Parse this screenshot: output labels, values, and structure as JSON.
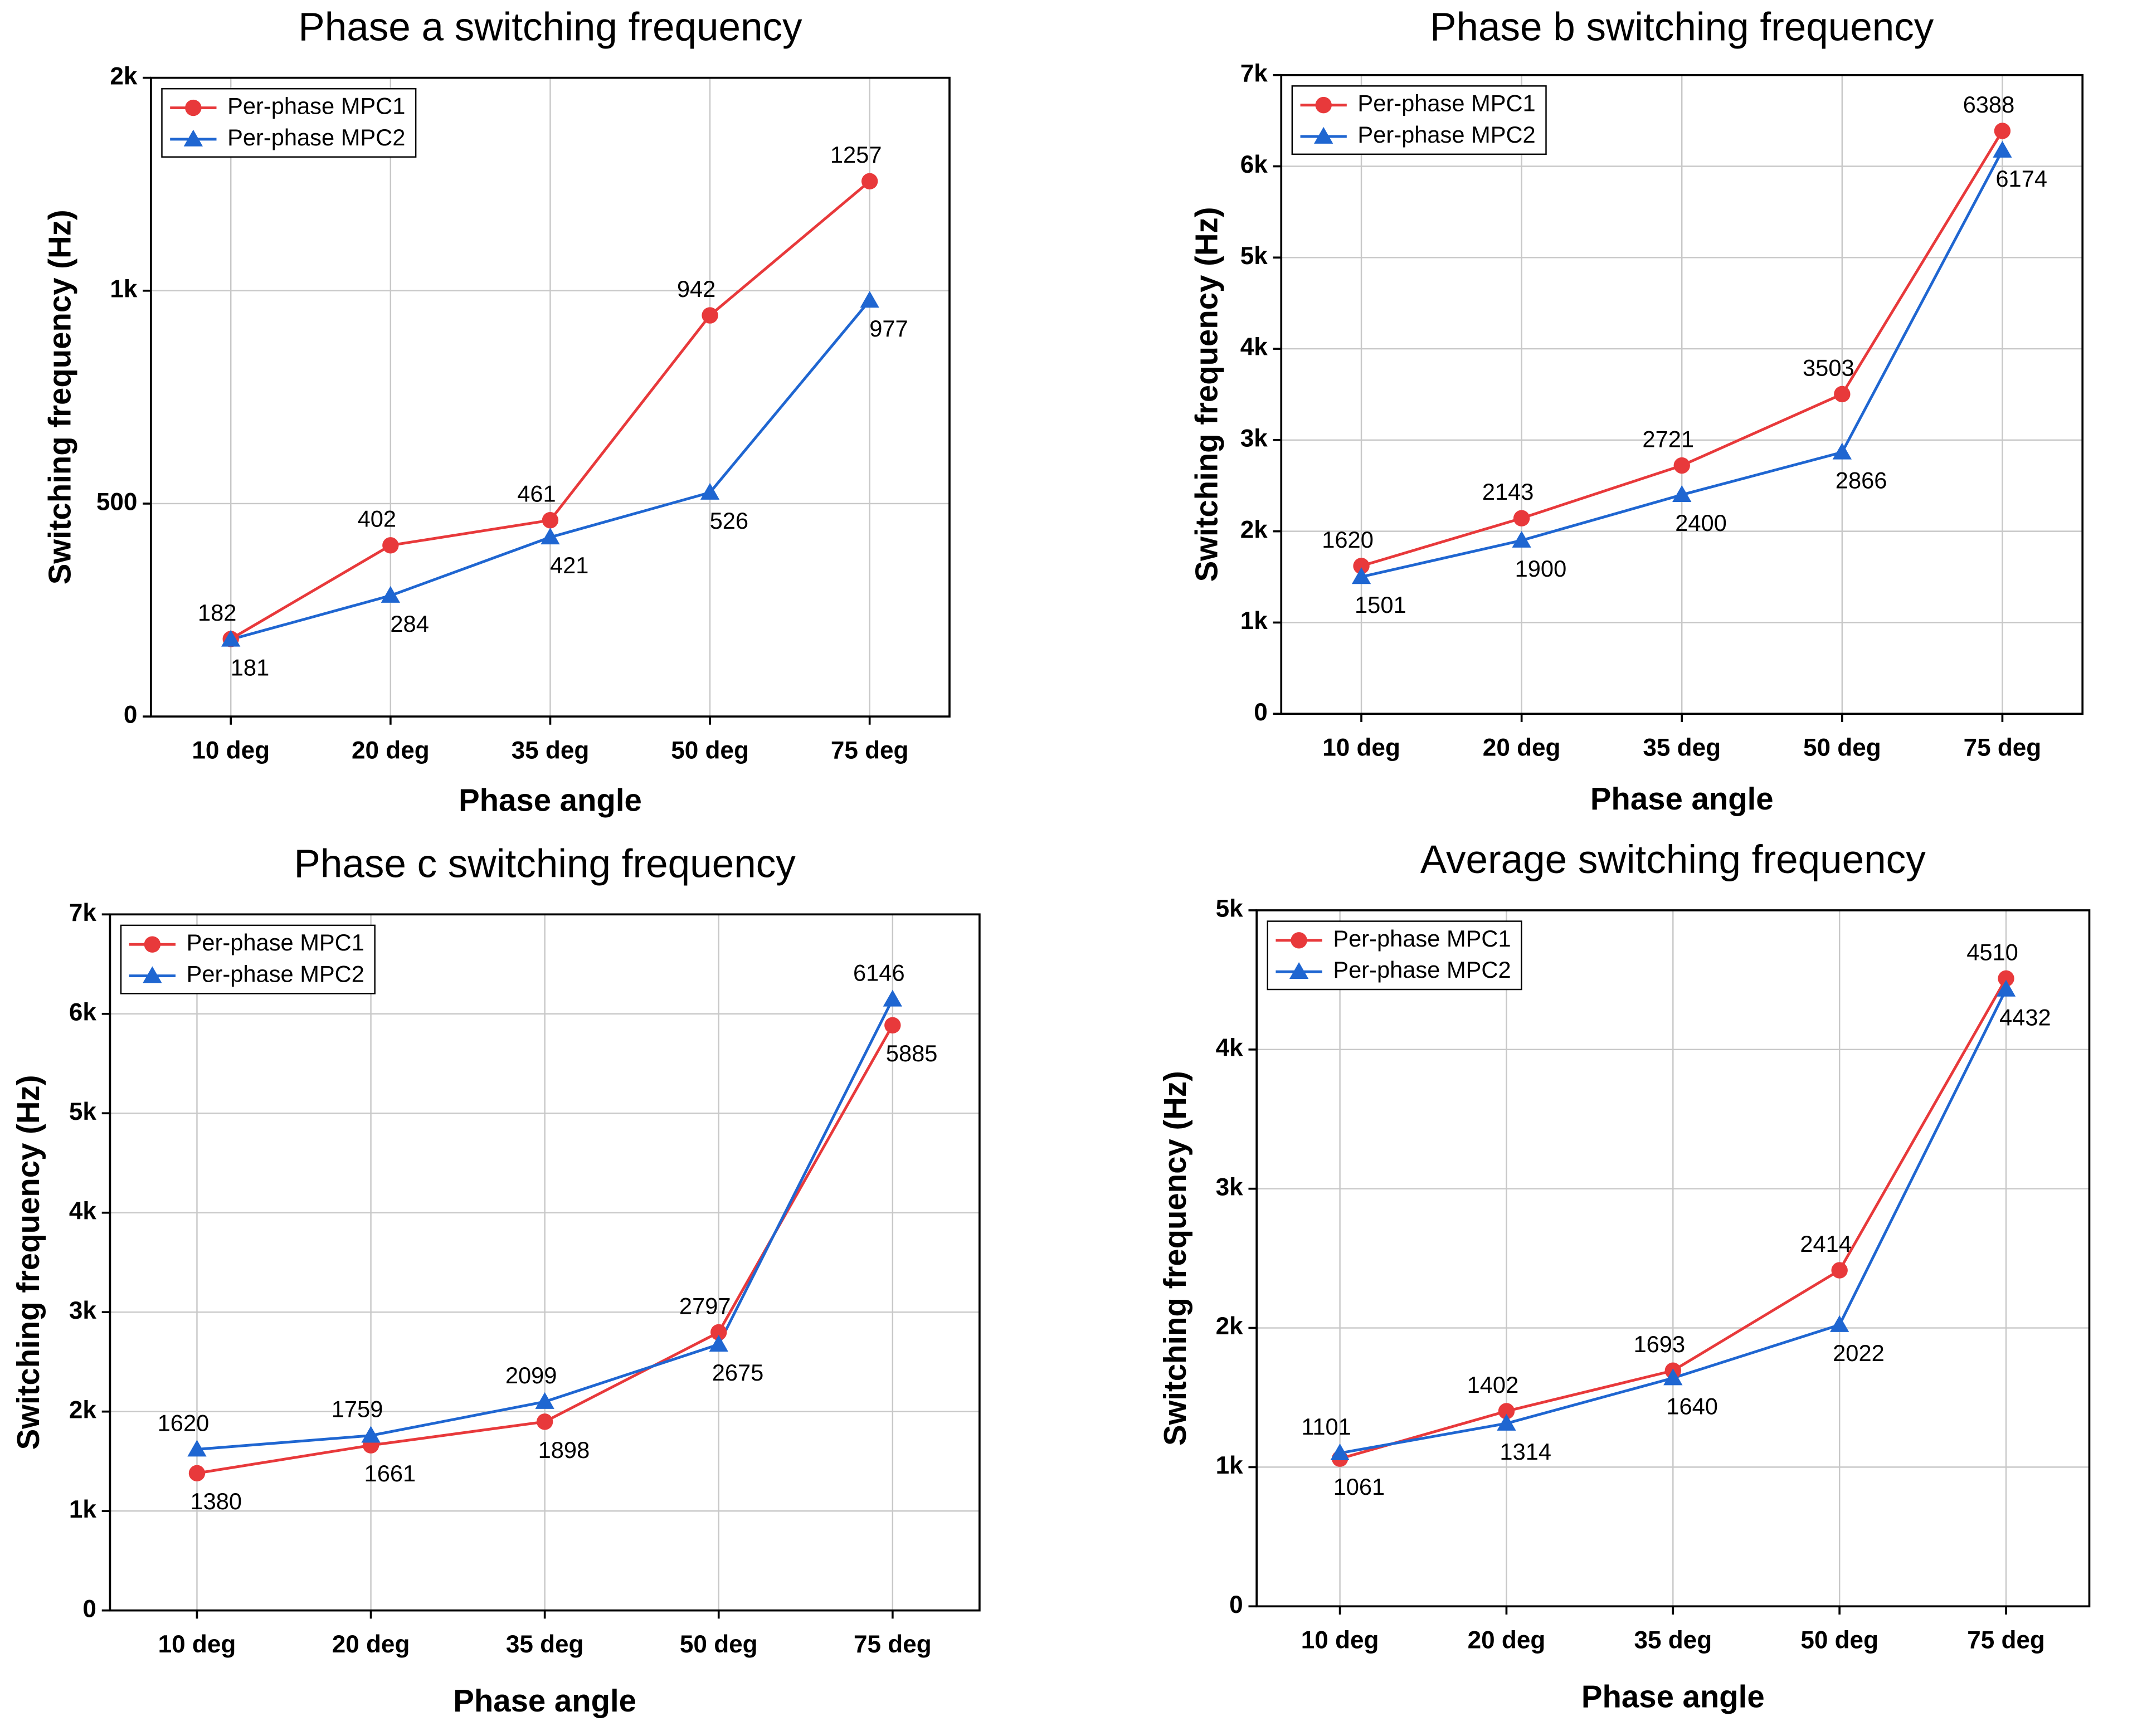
{
  "chart_data": [
    {
      "type": "line",
      "title": "Phase a switching frequency",
      "xlabel": "Phase angle",
      "ylabel": "Switching frequency (Hz)",
      "categories": [
        "10 deg",
        "20 deg",
        "35 deg",
        "50 deg",
        "75 deg"
      ],
      "series": [
        {
          "name": "Per-phase MPC1",
          "color": "#e8393b",
          "marker": "circle",
          "values": [
            182,
            402,
            461,
            942,
            1257
          ]
        },
        {
          "name": "Per-phase MPC2",
          "color": "#1f66d1",
          "marker": "triangle",
          "values": [
            181,
            284,
            421,
            526,
            977
          ]
        }
      ],
      "ylim": [
        0,
        1500
      ],
      "yticks": [
        0,
        500,
        {
          "value": 1000,
          "label": "1k"
        },
        {
          "value": 1500,
          "label": "2k"
        }
      ],
      "grid": true,
      "legend": "upper left"
    },
    {
      "type": "line",
      "title": "Phase b switching frequency",
      "xlabel": "Phase angle",
      "ylabel": "Switching frequency (Hz)",
      "categories": [
        "10 deg",
        "20 deg",
        "35 deg",
        "50 deg",
        "75 deg"
      ],
      "series": [
        {
          "name": "Per-phase MPC1",
          "color": "#e8393b",
          "marker": "circle",
          "values": [
            1620,
            2143,
            2721,
            3503,
            6388
          ]
        },
        {
          "name": "Per-phase MPC2",
          "color": "#1f66d1",
          "marker": "triangle",
          "values": [
            1501,
            1900,
            2400,
            2866,
            6174
          ]
        }
      ],
      "ylim": [
        0,
        7000
      ],
      "yticks": [
        0,
        {
          "value": 1000,
          "label": "1k"
        },
        {
          "value": 2000,
          "label": "2k"
        },
        {
          "value": 3000,
          "label": "3k"
        },
        {
          "value": 4000,
          "label": "4k"
        },
        {
          "value": 5000,
          "label": "5k"
        },
        {
          "value": 6000,
          "label": "6k"
        },
        {
          "value": 7000,
          "label": "7k"
        }
      ],
      "grid": true,
      "legend": "upper left"
    },
    {
      "type": "line",
      "title": "Phase c switching frequency",
      "xlabel": "Phase angle",
      "ylabel": "Switching frequency (Hz)",
      "categories": [
        "10 deg",
        "20 deg",
        "35 deg",
        "50 deg",
        "75 deg"
      ],
      "series": [
        {
          "name": "Per-phase MPC1",
          "color": "#e8393b",
          "marker": "circle",
          "values": [
            1380,
            1661,
            1898,
            2797,
            5885
          ]
        },
        {
          "name": "Per-phase MPC2",
          "color": "#1f66d1",
          "marker": "triangle",
          "values": [
            1620,
            1759,
            2099,
            2675,
            6146
          ]
        }
      ],
      "ylim": [
        0,
        7000
      ],
      "yticks": [
        0,
        {
          "value": 1000,
          "label": "1k"
        },
        {
          "value": 2000,
          "label": "2k"
        },
        {
          "value": 3000,
          "label": "3k"
        },
        {
          "value": 4000,
          "label": "4k"
        },
        {
          "value": 5000,
          "label": "5k"
        },
        {
          "value": 6000,
          "label": "6k"
        },
        {
          "value": 7000,
          "label": "7k"
        }
      ],
      "grid": true,
      "legend": "upper left"
    },
    {
      "type": "line",
      "title": "Average switching frequency",
      "xlabel": "Phase angle",
      "ylabel": "Switching frequency (Hz)",
      "categories": [
        "10 deg",
        "20 deg",
        "35 deg",
        "50 deg",
        "75 deg"
      ],
      "series": [
        {
          "name": "Per-phase MPC1",
          "color": "#e8393b",
          "marker": "circle",
          "values": [
            1061,
            1402,
            1693,
            2414,
            4510
          ]
        },
        {
          "name": "Per-phase MPC2",
          "color": "#1f66d1",
          "marker": "triangle",
          "values": [
            1101,
            1314,
            1640,
            2022,
            4432
          ]
        }
      ],
      "ylim": [
        0,
        5000
      ],
      "yticks": [
        0,
        {
          "value": 1000,
          "label": "1k"
        },
        {
          "value": 2000,
          "label": "2k"
        },
        {
          "value": 3000,
          "label": "3k"
        },
        {
          "value": 4000,
          "label": "4k"
        },
        {
          "value": 5000,
          "label": "5k"
        }
      ],
      "grid": true,
      "legend": "upper left"
    }
  ]
}
